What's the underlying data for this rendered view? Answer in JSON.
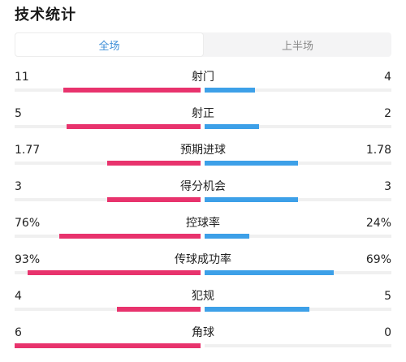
{
  "title": "技术统计",
  "tabs": [
    {
      "label": "全场",
      "active": true
    },
    {
      "label": "上半场",
      "active": false
    }
  ],
  "colors": {
    "home": "#e8336d",
    "away": "#3da0e8",
    "active_tab": "#3f8fd8"
  },
  "stats": [
    {
      "label": "射门",
      "home": "11",
      "away": "4",
      "home_ratio": 0.74,
      "away_ratio": 0.27
    },
    {
      "label": "射正",
      "home": "5",
      "away": "2",
      "home_ratio": 0.72,
      "away_ratio": 0.29
    },
    {
      "label": "预期进球",
      "home": "1.77",
      "away": "1.78",
      "home_ratio": 0.5,
      "away_ratio": 0.5
    },
    {
      "label": "得分机会",
      "home": "3",
      "away": "3",
      "home_ratio": 0.5,
      "away_ratio": 0.5
    },
    {
      "label": "控球率",
      "home": "76%",
      "away": "24%",
      "home_ratio": 0.76,
      "away_ratio": 0.24
    },
    {
      "label": "传球成功率",
      "home": "93%",
      "away": "69%",
      "home_ratio": 0.93,
      "away_ratio": 0.69
    },
    {
      "label": "犯规",
      "home": "4",
      "away": "5",
      "home_ratio": 0.45,
      "away_ratio": 0.56
    },
    {
      "label": "角球",
      "home": "6",
      "away": "0",
      "home_ratio": 1.0,
      "away_ratio": 0.0
    }
  ]
}
